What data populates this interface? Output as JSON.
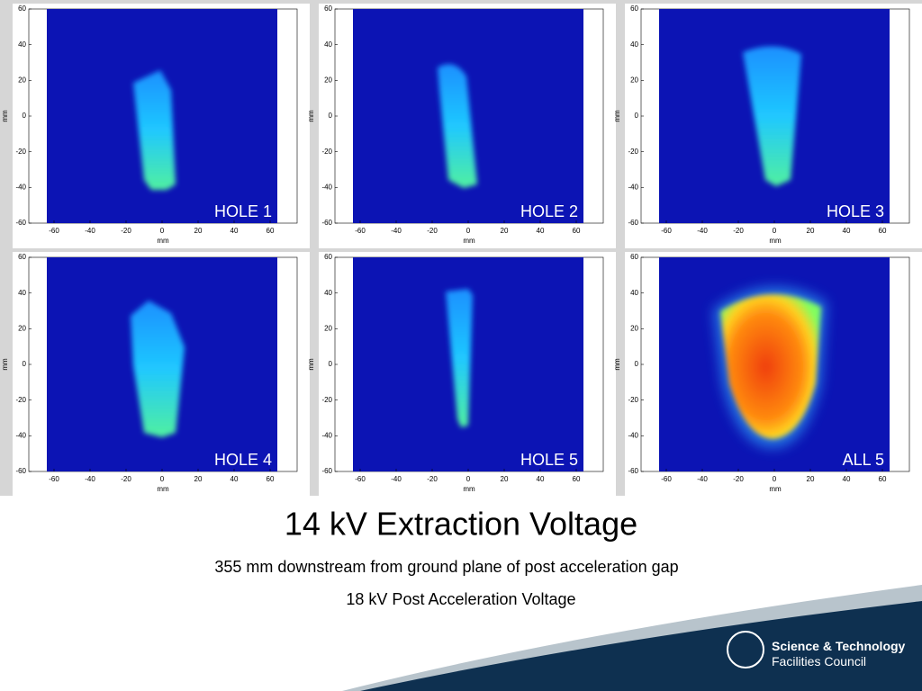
{
  "panels": [
    {
      "label": "HOLE 1"
    },
    {
      "label": "HOLE 2"
    },
    {
      "label": "HOLE 3"
    },
    {
      "label": "HOLE 4"
    },
    {
      "label": "HOLE 5"
    },
    {
      "label": "ALL 5"
    }
  ],
  "axes": {
    "xlabel": "mm",
    "ylabel": "mm",
    "xlim": [
      -74,
      75
    ],
    "ylim": [
      -60,
      60
    ],
    "xticks": [
      -60,
      -40,
      -20,
      0,
      20,
      40,
      60
    ],
    "yticks": [
      60,
      40,
      20,
      0,
      -20,
      -40,
      -60
    ]
  },
  "title": "14 kV Extraction Voltage",
  "subtitle": "355 mm downstream from ground plane of post acceleration gap",
  "note": "18 kV Post Acceleration Voltage",
  "logo": {
    "line1": "Science & Technology",
    "line2": "Facilities Council"
  }
}
